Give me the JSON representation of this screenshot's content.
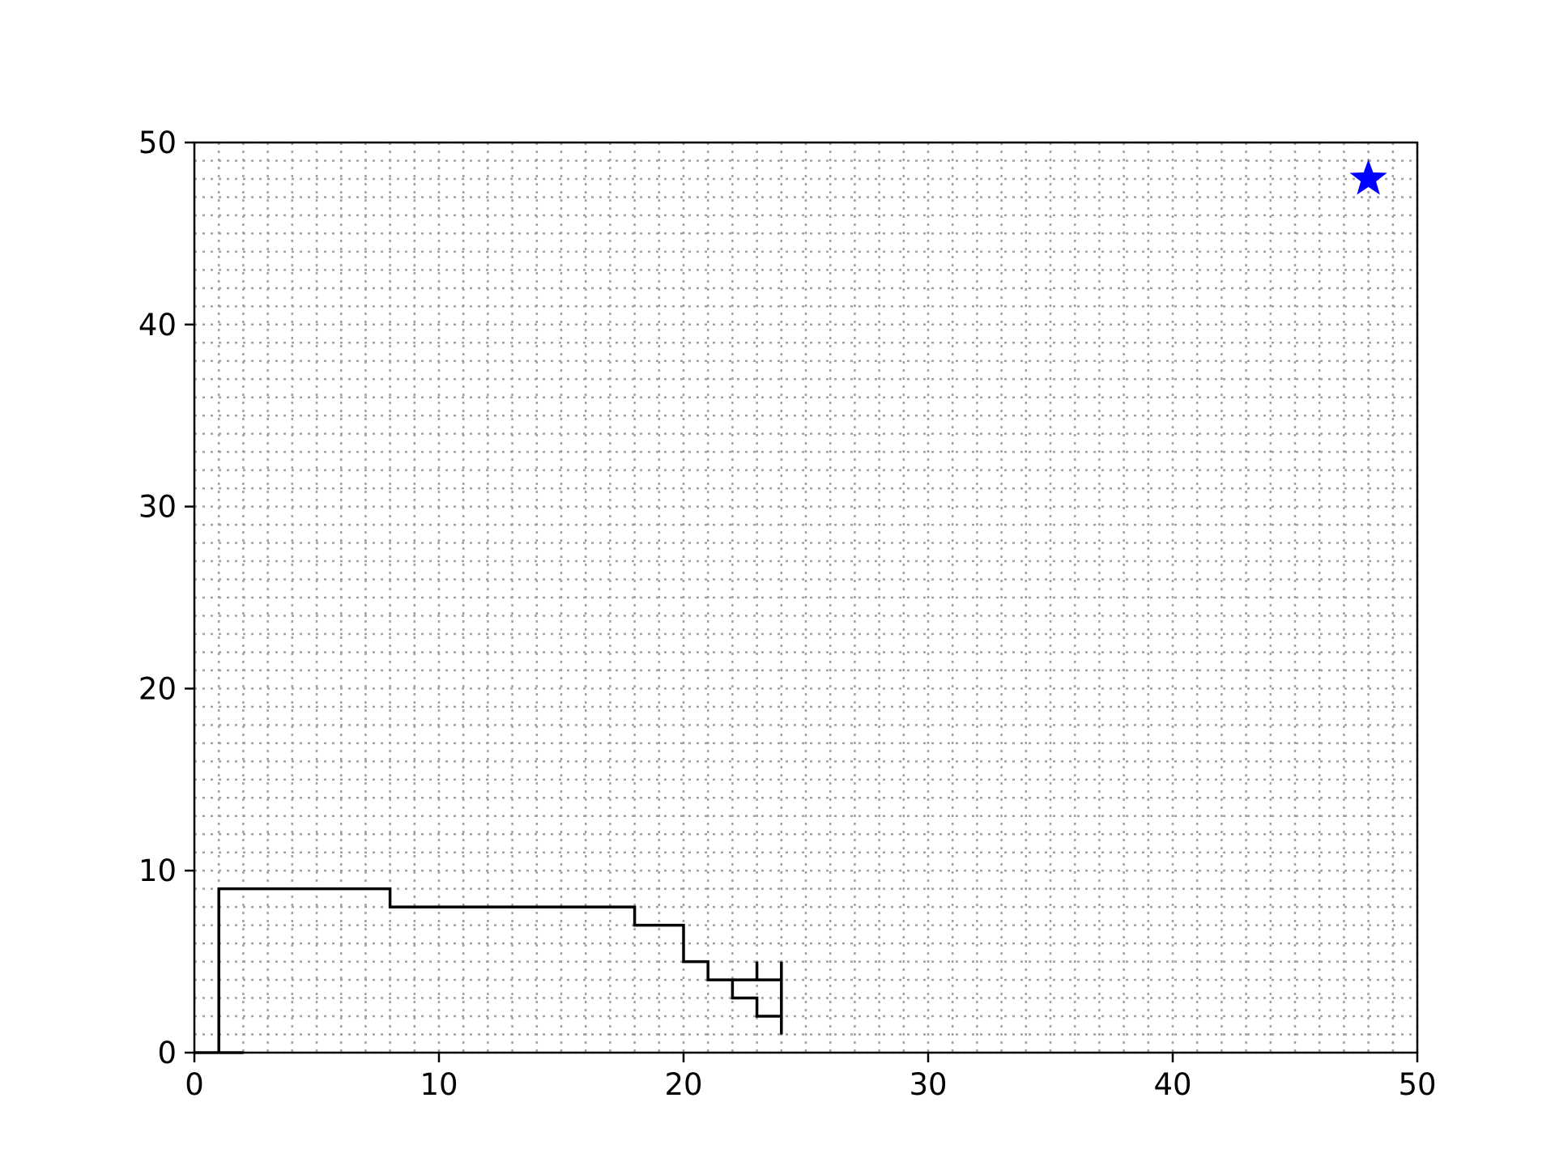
{
  "chart_data": {
    "type": "line",
    "title": "",
    "xlabel": "",
    "ylabel": "",
    "xlim": [
      0,
      50
    ],
    "ylim": [
      0,
      50
    ],
    "xticks": [
      "0",
      "10",
      "20",
      "30",
      "40",
      "50"
    ],
    "yticks": [
      "0",
      "10",
      "20",
      "30",
      "40",
      "50"
    ],
    "grid": "dotted, every 1 unit",
    "legend": "none",
    "colors": {
      "path": "#000000",
      "goal_marker": "#0000ff",
      "grid": "#a0a0a0"
    },
    "series": [
      {
        "kind": "step-path",
        "points": [
          [
            0,
            0
          ],
          [
            2,
            0
          ],
          [
            1,
            0
          ],
          [
            1,
            9
          ],
          [
            8,
            9
          ],
          [
            8,
            8
          ],
          [
            18,
            8
          ],
          [
            18,
            7
          ],
          [
            20,
            7
          ],
          [
            20,
            5
          ],
          [
            21,
            5
          ],
          [
            21,
            4
          ],
          [
            24,
            4
          ],
          [
            24,
            5
          ],
          [
            24,
            1
          ],
          [
            24,
            2
          ],
          [
            23,
            2
          ],
          [
            23,
            3
          ],
          [
            22,
            3
          ],
          [
            22,
            4
          ],
          [
            23,
            4
          ],
          [
            23,
            5
          ]
        ]
      }
    ],
    "markers": [
      {
        "kind": "star",
        "x": 48,
        "y": 48
      }
    ]
  }
}
